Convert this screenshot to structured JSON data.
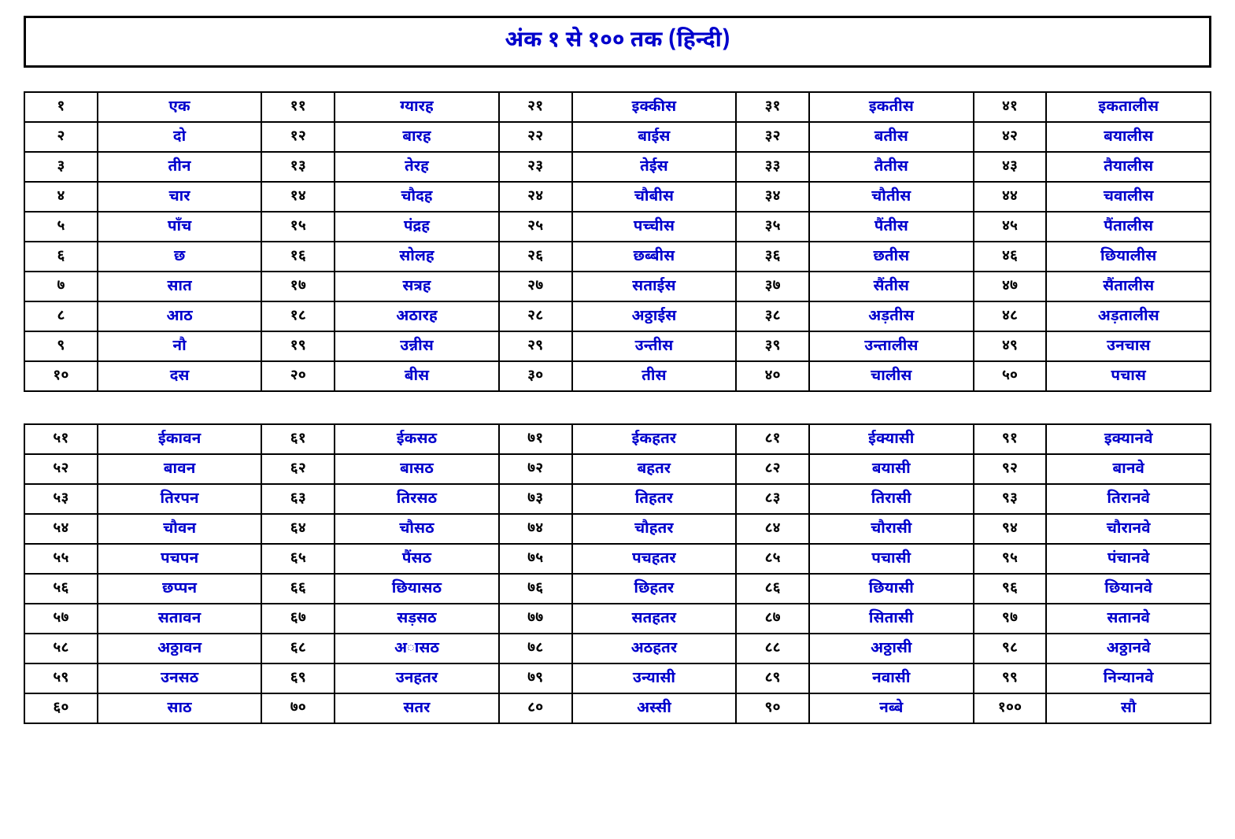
{
  "title": "अंक १ से १०० तक (हिन्दी)",
  "styling": {
    "title_color": "#0000cc",
    "title_fontsize": 28,
    "word_color": "#0000cc",
    "num_color": "#000000",
    "border_color": "#000000",
    "background": "#ffffff",
    "col_num_width_pct": 6,
    "col_word_width_pct": 14
  },
  "table1": {
    "rows": [
      [
        {
          "n": "१",
          "w": "एक"
        },
        {
          "n": "११",
          "w": "ग्यारह"
        },
        {
          "n": "२१",
          "w": "इक्कीस"
        },
        {
          "n": "३१",
          "w": "इकतीस"
        },
        {
          "n": "४१",
          "w": "इकतालीस"
        }
      ],
      [
        {
          "n": "२",
          "w": "दो"
        },
        {
          "n": "१२",
          "w": "बारह"
        },
        {
          "n": "२२",
          "w": "बाईस"
        },
        {
          "n": "३२",
          "w": "बतीस"
        },
        {
          "n": "४२",
          "w": "बयालीस"
        }
      ],
      [
        {
          "n": "३",
          "w": "तीन"
        },
        {
          "n": "१३",
          "w": "तेरह"
        },
        {
          "n": "२३",
          "w": "तेईस"
        },
        {
          "n": "३३",
          "w": "तैतीस"
        },
        {
          "n": "४३",
          "w": "तैयालीस"
        }
      ],
      [
        {
          "n": "४",
          "w": "चार"
        },
        {
          "n": "१४",
          "w": "चौदह"
        },
        {
          "n": "२४",
          "w": "चौबीस"
        },
        {
          "n": "३४",
          "w": "चौतीस"
        },
        {
          "n": "४४",
          "w": "चवालीस"
        }
      ],
      [
        {
          "n": "५",
          "w": "पाँच"
        },
        {
          "n": "१५",
          "w": "पंद्रह"
        },
        {
          "n": "२५",
          "w": "पच्चीस"
        },
        {
          "n": "३५",
          "w": "पैंतीस"
        },
        {
          "n": "४५",
          "w": "पैंतालीस"
        }
      ],
      [
        {
          "n": "६",
          "w": "छ"
        },
        {
          "n": "१६",
          "w": "सोलह"
        },
        {
          "n": "२६",
          "w": "छब्बीस"
        },
        {
          "n": "३६",
          "w": "छतीस"
        },
        {
          "n": "४६",
          "w": "छियालीस"
        }
      ],
      [
        {
          "n": "७",
          "w": "सात"
        },
        {
          "n": "१७",
          "w": "सत्रह"
        },
        {
          "n": "२७",
          "w": "सताईस"
        },
        {
          "n": "३७",
          "w": "सैंतीस"
        },
        {
          "n": "४७",
          "w": "सैंतालीस"
        }
      ],
      [
        {
          "n": "८",
          "w": "आठ"
        },
        {
          "n": "१८",
          "w": "अठारह"
        },
        {
          "n": "२८",
          "w": "अठ्ठाईस"
        },
        {
          "n": "३८",
          "w": "अड़तीस"
        },
        {
          "n": "४८",
          "w": "अड़तालीस"
        }
      ],
      [
        {
          "n": "९",
          "w": "नौ"
        },
        {
          "n": "१९",
          "w": "उन्नीस"
        },
        {
          "n": "२९",
          "w": "उन्तीस"
        },
        {
          "n": "३९",
          "w": "उन्तालीस"
        },
        {
          "n": "४९",
          "w": "उनचास"
        }
      ],
      [
        {
          "n": "१०",
          "w": "दस"
        },
        {
          "n": "२०",
          "w": "बीस"
        },
        {
          "n": "३०",
          "w": "तीस"
        },
        {
          "n": "४०",
          "w": "चालीस"
        },
        {
          "n": "५०",
          "w": "पचास"
        }
      ]
    ]
  },
  "table2": {
    "rows": [
      [
        {
          "n": "५१",
          "w": "ईकावन"
        },
        {
          "n": "६१",
          "w": "ईकसठ"
        },
        {
          "n": "७१",
          "w": "ईकहतर"
        },
        {
          "n": "८१",
          "w": "ईक्यासी"
        },
        {
          "n": "९१",
          "w": "इक्यानवे"
        }
      ],
      [
        {
          "n": "५२",
          "w": "बावन"
        },
        {
          "n": "६२",
          "w": "बासठ"
        },
        {
          "n": "७२",
          "w": "बहतर"
        },
        {
          "n": "८२",
          "w": "बयासी"
        },
        {
          "n": "९२",
          "w": "बानवे"
        }
      ],
      [
        {
          "n": "५३",
          "w": "तिरपन"
        },
        {
          "n": "६३",
          "w": "तिरसठ"
        },
        {
          "n": "७३",
          "w": "तिहतर"
        },
        {
          "n": "८३",
          "w": "तिरासी"
        },
        {
          "n": "९३",
          "w": "तिरानवे"
        }
      ],
      [
        {
          "n": "५४",
          "w": "चौवन"
        },
        {
          "n": "६४",
          "w": "चौसठ"
        },
        {
          "n": "७४",
          "w": "चौहतर"
        },
        {
          "n": "८४",
          "w": "चौरासी"
        },
        {
          "n": "९४",
          "w": "चौरानवे"
        }
      ],
      [
        {
          "n": "५५",
          "w": "पचपन"
        },
        {
          "n": "६५",
          "w": "पैंसठ"
        },
        {
          "n": "७५",
          "w": "पचहतर"
        },
        {
          "n": "८५",
          "w": "पचासी"
        },
        {
          "n": "९५",
          "w": "पंचानवे"
        }
      ],
      [
        {
          "n": "५६",
          "w": "छप्पन"
        },
        {
          "n": "६६",
          "w": "छियासठ"
        },
        {
          "n": "७६",
          "w": "छिहतर"
        },
        {
          "n": "८६",
          "w": "छियासी"
        },
        {
          "n": "९६",
          "w": "छियानवे"
        }
      ],
      [
        {
          "n": "५७",
          "w": "सतावन"
        },
        {
          "n": "६७",
          "w": "सड़सठ"
        },
        {
          "n": "७७",
          "w": "सतहतर"
        },
        {
          "n": "८७",
          "w": "सितासी"
        },
        {
          "n": "९७",
          "w": "सतानवे"
        }
      ],
      [
        {
          "n": "५८",
          "w": "अठ्ठावन"
        },
        {
          "n": "६८",
          "w": "अासठ"
        },
        {
          "n": "७८",
          "w": "अठहतर"
        },
        {
          "n": "८८",
          "w": "अठ्ठासी"
        },
        {
          "n": "९८",
          "w": "अठ्ठानवे"
        }
      ],
      [
        {
          "n": "५९",
          "w": "उनसठ"
        },
        {
          "n": "६९",
          "w": "उनहतर"
        },
        {
          "n": "७९",
          "w": "उन्यासी"
        },
        {
          "n": "८९",
          "w": "नवासी"
        },
        {
          "n": "९९",
          "w": "निन्यानवे"
        }
      ],
      [
        {
          "n": "६०",
          "w": "साठ"
        },
        {
          "n": "७०",
          "w": "सतर"
        },
        {
          "n": "८०",
          "w": "अस्सी"
        },
        {
          "n": "९०",
          "w": "नब्बे"
        },
        {
          "n": "१००",
          "w": "सौ"
        }
      ]
    ]
  }
}
